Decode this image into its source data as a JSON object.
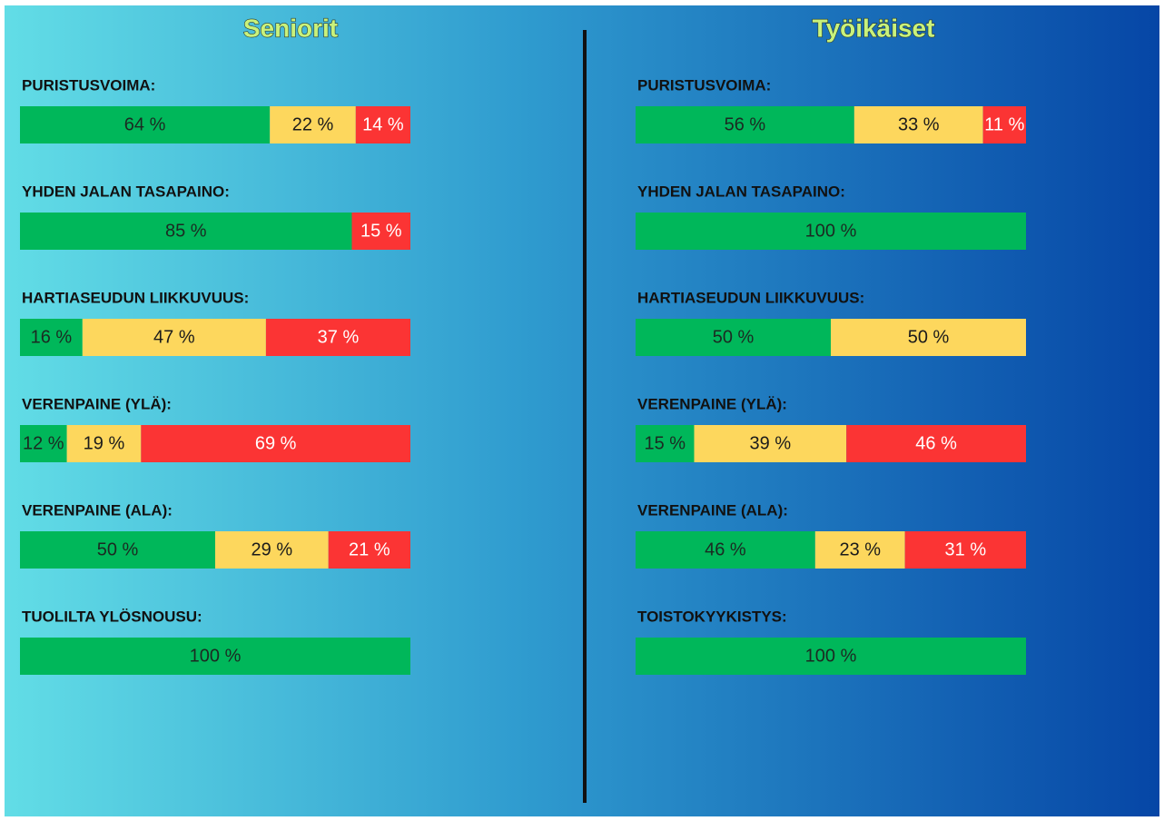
{
  "chart_data": [
    {
      "type": "stacked_bar",
      "orientation": "horizontal",
      "title": "Seniorit",
      "xlim": [
        0,
        100
      ],
      "categories": [
        "PURISTUSVOIMA:",
        "YHDEN JALAN TASAPAINO:",
        "HARTIASEUDUN LIIKKUVUUS:",
        "VERENPAINE (YLÄ):",
        "VERENPAINE (ALA):",
        "TUOLILTA YLÖSNOUSU:"
      ],
      "series": [
        {
          "color": "#00b75a",
          "values": [
            64,
            85,
            16,
            12,
            50,
            100
          ],
          "value_labels": [
            "64 %",
            "85 %",
            "16 %",
            "12 %",
            "50 %",
            "100 %"
          ]
        },
        {
          "color": "#fdd75d",
          "values": [
            22,
            null,
            47,
            19,
            29,
            null
          ],
          "value_labels": [
            "22 %",
            null,
            "47 %",
            "19 %",
            "29 %",
            null
          ]
        },
        {
          "color": "#fb3434",
          "values": [
            14,
            15,
            37,
            69,
            21,
            null
          ],
          "value_labels": [
            "14 %",
            "15 %",
            "37 %",
            "69 %",
            "21 %",
            null
          ]
        }
      ]
    },
    {
      "type": "stacked_bar",
      "orientation": "horizontal",
      "title": "Työikäiset",
      "xlim": [
        0,
        100
      ],
      "categories": [
        "PURISTUSVOIMA:",
        "YHDEN JALAN TASAPAINO:",
        "HARTIASEUDUN LIIKKUVUUS:",
        "VERENPAINE (YLÄ):",
        "VERENPAINE (ALA):",
        "TOISTOKYYKISTYS:"
      ],
      "series": [
        {
          "color": "#00b75a",
          "values": [
            56,
            100,
            50,
            15,
            46,
            100
          ],
          "value_labels": [
            "56 %",
            "100 %",
            "50 %",
            "15 %",
            "46 %",
            "100 %"
          ]
        },
        {
          "color": "#fdd75d",
          "values": [
            33,
            null,
            50,
            39,
            23,
            null
          ],
          "value_labels": [
            "33 %",
            null,
            "50 %",
            "39 %",
            "23 %",
            null
          ]
        },
        {
          "color": "#fb3434",
          "values": [
            11,
            null,
            null,
            46,
            31,
            null
          ],
          "value_labels": [
            "11 %",
            null,
            null,
            "46 %",
            "31 %",
            null
          ]
        }
      ]
    }
  ]
}
